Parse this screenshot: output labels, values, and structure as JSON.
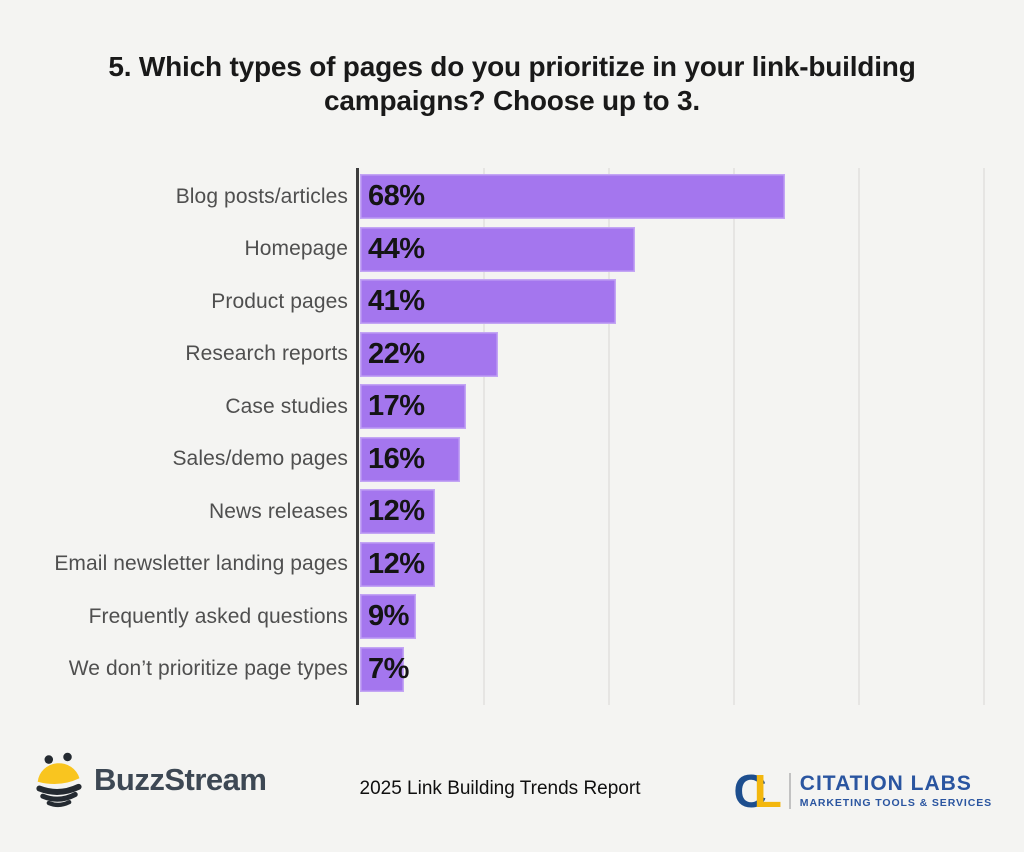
{
  "title_lines": [
    "5. Which types of pages do you prioritize in your link-building",
    "campaigns? Choose up to 3."
  ],
  "chart_data": {
    "type": "bar",
    "orientation": "horizontal",
    "title": "5. Which types of pages do you prioritize in your link-building campaigns? Choose up to 3.",
    "categories": [
      "Blog posts/articles",
      "Homepage",
      "Product pages",
      "Research reports",
      "Case studies",
      "Sales/demo pages",
      "News releases",
      "Email newsletter landing pages",
      "Frequently asked questions",
      "We don’t prioritize page types"
    ],
    "values": [
      68,
      44,
      41,
      22,
      17,
      16,
      12,
      12,
      9,
      7
    ],
    "value_labels": [
      "68%",
      "44%",
      "41%",
      "22%",
      "17%",
      "16%",
      "12%",
      "12%",
      "9%",
      "7%"
    ],
    "xlim": [
      0,
      100
    ],
    "gridlines_pct": [
      20,
      40,
      60,
      80,
      100
    ],
    "grid": "vertical-light",
    "legend": "none",
    "bar_color": "#a476ee"
  },
  "footer": {
    "buzzstream_label": "BuzzStream",
    "report_title": "2025 Link Building Trends Report",
    "citation_labs": {
      "monogram_c": "C",
      "monogram_l": "L",
      "name": "CITATION LABS",
      "tagline": "MARKETING TOOLS & SERVICES"
    }
  },
  "colors": {
    "background": "#f4f4f2",
    "bar": "#a476ee",
    "axis": "#3d3d3d",
    "gridline": "#e6e5e3",
    "category_label": "#4f4f4f",
    "value_label": "#141414",
    "title_text": "#191919",
    "buzzstream_text": "#3d4854",
    "bee_yellow": "#f9c51f",
    "bee_dark": "#242a31",
    "citation_c_blue": "#1d4e8e",
    "citation_l_gold": "#f3b70e",
    "citation_text_blue": "#2a55a0"
  }
}
